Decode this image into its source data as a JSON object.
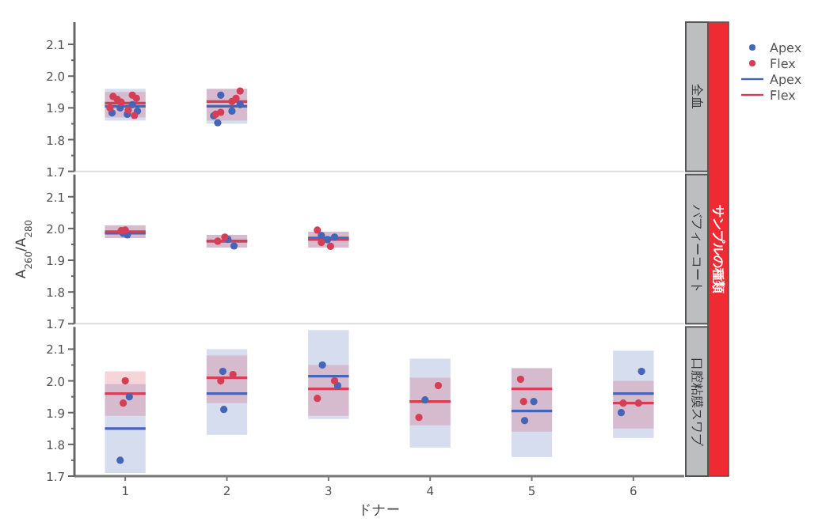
{
  "chart_data": [
    {
      "type": "scatter",
      "title": "全血",
      "annotations": [
        "サンプルの種類"
      ],
      "legend": "right",
      "tick_labels": "y",
      "xlim": [
        0.5,
        6.5
      ],
      "ylim": [
        1.7,
        2.17
      ],
      "yticks": [
        1.7,
        {
          "value": 1.75,
          "label": null
        },
        1.8,
        {
          "value": 1.85,
          "label": null
        },
        1.9,
        {
          "value": 1.95,
          "label": null
        },
        {
          "value": 2,
          "label": "2.0"
        },
        {
          "value": 2.05,
          "label": null
        },
        2.1
      ],
      "series": [
        {
          "type": "box",
          "name": "Apex",
          "color": "#4565b8",
          "x": [
            1,
            2
          ],
          "boxes": [
            {
              "low": 1.86,
              "q1": 1.86,
              "median": 1.905,
              "q3": 1.96,
              "high": 1.96
            },
            {
              "low": 1.85,
              "q1": 1.85,
              "median": 1.905,
              "q3": 1.96,
              "high": 1.96
            }
          ]
        },
        {
          "type": "box",
          "name": "Flex",
          "color": "#d63e56",
          "x": [
            1,
            2
          ],
          "boxes": [
            {
              "low": 1.87,
              "q1": 1.87,
              "median": 1.915,
              "q3": 1.95,
              "high": 1.95
            },
            {
              "low": 1.86,
              "q1": 1.86,
              "median": 1.92,
              "q3": 1.96,
              "high": 1.96
            }
          ]
        },
        {
          "type": "scatter",
          "name": "Apex",
          "color": "#4565b8",
          "x": [
            0.87,
            1.02,
            1.12,
            0.95,
            1.07,
            1.91,
            1.94,
            2.05,
            2.13,
            1.87
          ],
          "values": [
            1.884,
            1.88,
            1.89,
            1.9,
            1.91,
            1.853,
            1.94,
            1.89,
            1.91,
            1.875
          ]
        },
        {
          "type": "scatter",
          "name": "Flex",
          "color": "#d63e56",
          "x": [
            0.88,
            0.92,
            0.96,
            1.07,
            1.11,
            1.03,
            1.09,
            0.85,
            2.13,
            2.09,
            2.05,
            1.94,
            1.89
          ],
          "values": [
            1.936,
            1.927,
            1.918,
            1.94,
            1.93,
            1.893,
            1.876,
            1.9,
            1.953,
            1.93,
            1.92,
            1.886,
            1.88
          ]
        }
      ]
    },
    {
      "type": "scatter",
      "title": "バフィーコート",
      "ylabel": "A$_{260}$/A$_{280}$",
      "tick_labels": "y",
      "xlim": [
        0.5,
        6.5
      ],
      "ylim": [
        1.7,
        2.17
      ],
      "yticks": [
        1.7,
        {
          "value": 1.75,
          "label": null
        },
        1.8,
        {
          "value": 1.85,
          "label": null
        },
        1.9,
        {
          "value": 1.95,
          "label": null
        },
        {
          "value": 2,
          "label": "2.0"
        },
        {
          "value": 2.05,
          "label": null
        },
        2.1
      ],
      "series": [
        {
          "type": "box",
          "color": "#4565b8",
          "x": [
            1,
            2,
            3
          ],
          "boxes": [
            {
              "low": 1.97,
              "q1": 1.97,
              "median": 1.985,
              "q3": 2.01,
              "high": 2.01
            },
            {
              "low": 1.94,
              "q1": 1.94,
              "median": 1.96,
              "q3": 1.98,
              "high": 1.98
            },
            {
              "low": 1.94,
              "q1": 1.94,
              "median": 1.97,
              "q3": 1.99,
              "high": 1.99
            }
          ]
        },
        {
          "type": "box",
          "color": "#d63e56",
          "x": [
            1,
            2,
            3
          ],
          "boxes": [
            {
              "low": 1.97,
              "q1": 1.97,
              "median": 1.99,
              "q3": 2.01,
              "high": 2.01
            },
            {
              "low": 1.94,
              "q1": 1.94,
              "median": 1.96,
              "q3": 1.98,
              "high": 1.98
            },
            {
              "low": 1.94,
              "q1": 1.94,
              "median": 1.965,
              "q3": 1.99,
              "high": 1.99
            }
          ]
        },
        {
          "type": "scatter",
          "color": "#4565b8",
          "x": [
            1.02,
            0.98,
            2.01,
            2.07,
            2.93,
            3.06,
            2.99
          ],
          "values": [
            1.98,
            1.985,
            1.966,
            1.945,
            1.978,
            1.973,
            1.965
          ]
        },
        {
          "type": "scatter",
          "color": "#d63e56",
          "x": [
            0.96,
            1.0,
            1.91,
            1.98,
            2.89,
            2.93,
            3.02
          ],
          "values": [
            1.993,
            1.995,
            1.96,
            1.973,
            1.995,
            1.956,
            1.944
          ]
        }
      ]
    },
    {
      "type": "scatter",
      "title": "口腔粘膜スワブ",
      "xlabel": "ドナー",
      "xlim": [
        0.5,
        6.5
      ],
      "xticks": [
        1,
        2,
        3,
        4,
        5,
        6
      ],
      "ylim": [
        1.7,
        2.17
      ],
      "yticks": [
        1.7,
        {
          "value": 1.75,
          "label": null
        },
        1.8,
        {
          "value": 1.85,
          "label": null
        },
        1.9,
        {
          "value": 1.95,
          "label": null
        },
        {
          "value": 2,
          "label": "2.0"
        },
        {
          "value": 2.05,
          "label": null
        },
        2.1
      ],
      "series": [
        {
          "type": "box",
          "color": "#4565b8",
          "x": [
            1,
            2,
            3,
            4,
            5,
            6
          ],
          "boxes": [
            {
              "low": 1.71,
              "q1": 1.71,
              "median": 1.85,
              "q3": 1.99,
              "high": 1.99
            },
            {
              "low": 1.83,
              "q1": 1.83,
              "median": 1.96,
              "q3": 2.1,
              "high": 2.1
            },
            {
              "low": 1.88,
              "q1": 1.88,
              "median": 2.015,
              "q3": 2.16,
              "high": 2.16
            },
            {
              "low": 1.79,
              "q1": 1.79,
              "median": 1.935,
              "q3": 2.07,
              "high": 2.07
            },
            {
              "low": 1.76,
              "q1": 1.76,
              "median": 1.905,
              "q3": 2.04,
              "high": 2.04
            },
            {
              "low": 1.82,
              "q1": 1.82,
              "median": 1.96,
              "q3": 2.095,
              "high": 2.095
            }
          ]
        },
        {
          "type": "box",
          "color": "#d63e56",
          "x": [
            1,
            2,
            3,
            4,
            5,
            6
          ],
          "boxes": [
            {
              "low": 1.89,
              "q1": 1.89,
              "median": 1.96,
              "q3": 2.03,
              "high": 2.03
            },
            {
              "low": 1.93,
              "q1": 1.93,
              "median": 2.01,
              "q3": 2.08,
              "high": 2.08
            },
            {
              "low": 1.89,
              "q1": 1.89,
              "median": 1.975,
              "q3": 2.05,
              "high": 2.05
            },
            {
              "low": 1.86,
              "q1": 1.86,
              "median": 1.935,
              "q3": 2.01,
              "high": 2.01
            },
            {
              "low": 1.84,
              "q1": 1.84,
              "median": 1.975,
              "q3": 2.04,
              "high": 2.04
            },
            {
              "low": 1.85,
              "q1": 1.85,
              "median": 1.93,
              "q3": 2.0,
              "high": 2.0
            }
          ]
        },
        {
          "type": "scatter",
          "color": "#4565b8",
          "x": [
            1.04,
            0.95,
            1.96,
            1.97,
            2.94,
            3.09,
            3.95,
            5.02,
            4.93,
            6.08,
            5.88
          ],
          "values": [
            1.95,
            1.75,
            2.03,
            1.91,
            2.05,
            1.985,
            1.94,
            1.935,
            1.875,
            2.03,
            1.9
          ]
        },
        {
          "type": "scatter",
          "color": "#d63e56",
          "x": [
            1.0,
            0.98,
            1.94,
            2.06,
            3.06,
            2.89,
            4.08,
            3.89,
            4.89,
            4.92,
            5.9,
            6.05
          ],
          "values": [
            2.0,
            1.93,
            2.0,
            2.02,
            2.0,
            1.945,
            1.985,
            1.885,
            2.005,
            1.935,
            1.93,
            1.93
          ]
        }
      ]
    }
  ]
}
